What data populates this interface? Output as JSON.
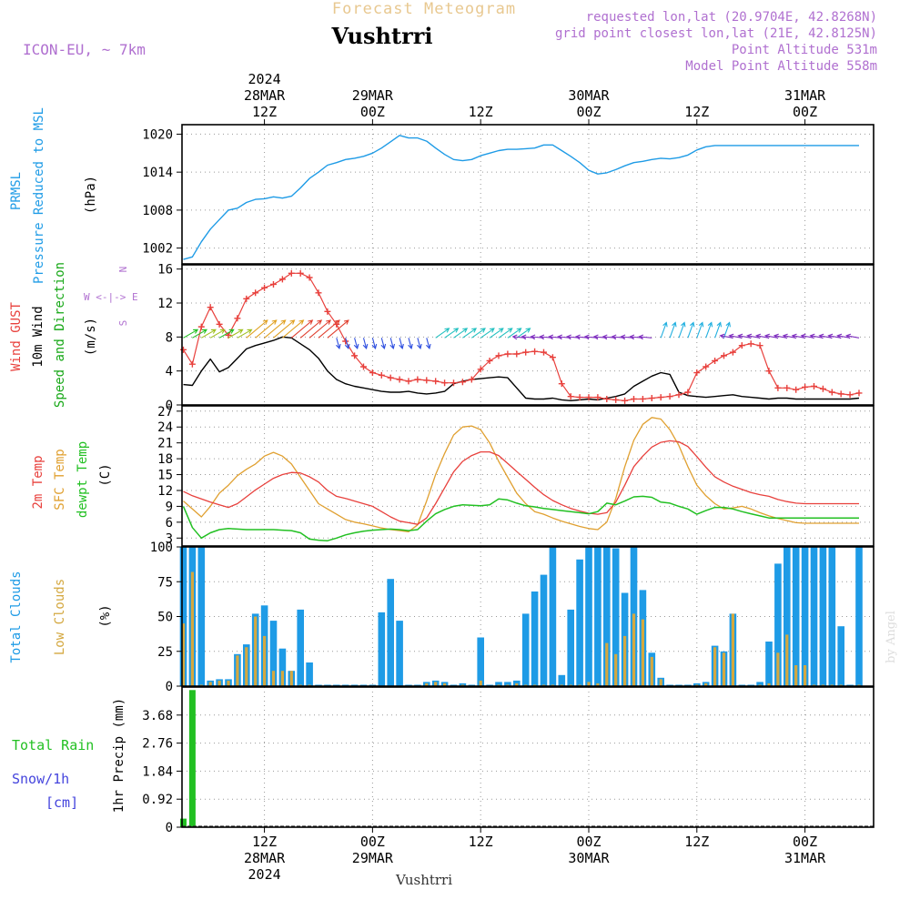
{
  "header": {
    "title": "Forecast Meteogram",
    "location": "Vushtrri",
    "model": "ICON-EU, ~ 7km",
    "requested": "requested lon,lat (20.9704E, 42.8268N)",
    "grid_point": "grid point closest lon,lat (21E, 42.8125N)",
    "point_altitude": "Point Altitude 531m",
    "model_altitude": "Model Point Altitude 558m",
    "footer_location": "Vushtrri",
    "watermark": "by Angel"
  },
  "time_axis": {
    "top_labels": [
      {
        "line1": "2024",
        "line2": "28MAR",
        "line3": "12Z",
        "hour": 12
      },
      {
        "line1": "",
        "line2": "29MAR",
        "line3": "00Z",
        "hour": 24
      },
      {
        "line1": "",
        "line2": "",
        "line3": "12Z",
        "hour": 36
      },
      {
        "line1": "",
        "line2": "30MAR",
        "line3": "00Z",
        "hour": 48
      },
      {
        "line1": "",
        "line2": "",
        "line3": "12Z",
        "hour": 60
      },
      {
        "line1": "",
        "line2": "31MAR",
        "line3": "00Z",
        "hour": 72
      }
    ],
    "bottom_labels": [
      {
        "line1": "12Z",
        "line2": "28MAR",
        "line3": "2024",
        "hour": 12
      },
      {
        "line1": "00Z",
        "line2": "29MAR",
        "line3": "",
        "hour": 24
      },
      {
        "line1": "12Z",
        "line2": "",
        "line3": "",
        "hour": 36
      },
      {
        "line1": "00Z",
        "line2": "30MAR",
        "line3": "",
        "hour": 48
      },
      {
        "line1": "12Z",
        "line2": "",
        "line3": "",
        "hour": 60
      },
      {
        "line1": "00Z",
        "line2": "31MAR",
        "line3": "",
        "hour": 72
      }
    ],
    "range_hours": [
      3,
      78
    ]
  },
  "colors": {
    "pressure": "#1e9be6",
    "gust": "#e8403c",
    "wind": "#000000",
    "wind_label": "#18a818",
    "temp": "#e8403c",
    "sfc_temp": "#e0a030",
    "dewpt": "#22c022",
    "total_clouds": "#1e9be6",
    "low_clouds": "#d4a840",
    "rain": "#22c022",
    "snow": "#4444dd",
    "header": "#b070d0",
    "title": "#e8c890"
  },
  "panels": {
    "pressure": {
      "label1": "PRMSL",
      "label2": "Pressure Reduced to MSL",
      "unit": "(hPa)",
      "ticks": [
        "1002",
        "1008",
        "1014",
        "1020"
      ]
    },
    "wind": {
      "label1": "Wind GUST",
      "label2": "10m Wind",
      "label3": "Speed and Direction",
      "unit": "(m/s)",
      "compass_n": "N",
      "compass_s": "S",
      "compass_ew": "W <-|-> E",
      "ticks": [
        "0",
        "4",
        "8",
        "12",
        "16"
      ]
    },
    "temp": {
      "label1": "2m Temp",
      "label2": "SFC Temp",
      "label3": "dewpt Temp",
      "unit": "(C)",
      "ticks": [
        "3",
        "6",
        "9",
        "12",
        "15",
        "18",
        "21",
        "24",
        "27"
      ]
    },
    "clouds": {
      "label1": "Total Clouds",
      "label2": "Low Clouds",
      "unit": "(%)",
      "ticks": [
        "0",
        "25",
        "50",
        "75",
        "100"
      ]
    },
    "precip": {
      "label1": "Total Rain",
      "label2": "Snow/1h",
      "label3": "[cm]",
      "unit": "1hr Precip (mm)",
      "ticks": [
        "0",
        "0.92",
        "1.84",
        "2.76",
        "3.68"
      ]
    }
  },
  "chart_data": [
    {
      "type": "line",
      "title": "PRMSL Pressure Reduced to MSL",
      "ylabel": "(hPa)",
      "ylim": [
        999.5,
        1021.5
      ],
      "x_unit": "hours from 28MAR 00Z",
      "series": [
        {
          "name": "PRMSL",
          "x": [
            3,
            4,
            5,
            6,
            7,
            8,
            9,
            10,
            11,
            12,
            13,
            14,
            15,
            16,
            17,
            18,
            19,
            20,
            21,
            22,
            23,
            24,
            25,
            26,
            27,
            28,
            29,
            30,
            31,
            32,
            33,
            34,
            35,
            36,
            37,
            38,
            39,
            40,
            41,
            42,
            43,
            44,
            45,
            46,
            47,
            48,
            49,
            50,
            51,
            52,
            53,
            54,
            55,
            56,
            57,
            58,
            59,
            60,
            61,
            62,
            63,
            64,
            65,
            66,
            67,
            68,
            69,
            70,
            71,
            72,
            73,
            74,
            75,
            76,
            77,
            78
          ],
          "values": [
            1000.2,
            1000.6,
            1003.0,
            1005.0,
            1006.5,
            1008.0,
            1008.3,
            1009.2,
            1009.7,
            1009.8,
            1010.1,
            1009.9,
            1010.2,
            1011.5,
            1013.0,
            1014.0,
            1015.1,
            1015.5,
            1016.0,
            1016.2,
            1016.5,
            1017.0,
            1017.8,
            1018.8,
            1019.8,
            1019.4,
            1019.4,
            1018.9,
            1017.8,
            1016.8,
            1016.0,
            1015.8,
            1016.0,
            1016.6,
            1017.0,
            1017.4,
            1017.6,
            1017.6,
            1017.7,
            1017.8,
            1018.3,
            1018.3,
            1017.4,
            1016.5,
            1015.5,
            1014.3,
            1013.7,
            1013.9,
            1014.4,
            1015.0,
            1015.5,
            1015.7,
            1016.0,
            1016.2,
            1016.1,
            1016.3,
            1016.7,
            1017.5,
            1018.0,
            1018.2,
            1018.2,
            1018.2,
            1018.2,
            1018.2,
            1018.2,
            1018.2,
            1018.2,
            1018.2,
            1018.2,
            1018.2,
            1018.2,
            1018.2,
            1018.2,
            1018.2,
            1018.2,
            1018.2
          ]
        }
      ]
    },
    {
      "type": "line",
      "title": "Wind GUST / 10m Wind Speed and Direction",
      "ylabel": "(m/s)",
      "ylim": [
        0,
        16.5
      ],
      "series": [
        {
          "name": "Wind GUST",
          "values": [
            6.5,
            4.8,
            9.2,
            11.5,
            9.5,
            8.2,
            10.2,
            12.5,
            13.2,
            13.8,
            14.2,
            14.8,
            15.5,
            15.5,
            15.0,
            13.2,
            11.0,
            9.5,
            7.5,
            5.8,
            4.5,
            3.8,
            3.5,
            3.2,
            3.0,
            2.8,
            3.0,
            2.9,
            2.8,
            2.6,
            2.6,
            2.7,
            3.0,
            4.2,
            5.2,
            5.8,
            6.0,
            6.0,
            6.2,
            6.3,
            6.2,
            5.6,
            2.5,
            1.0,
            0.9,
            0.9,
            0.9,
            0.7,
            0.6,
            0.5,
            0.7,
            0.7,
            0.8,
            0.9,
            1.0,
            1.2,
            1.5,
            3.8,
            4.5,
            5.2,
            5.8,
            6.2,
            7.0,
            7.2,
            7.0,
            4.0,
            2.0,
            2.0,
            1.8,
            2.1,
            2.2,
            1.9,
            1.5,
            1.3,
            1.2,
            1.4
          ]
        },
        {
          "name": "10m Wind",
          "values": [
            2.4,
            2.3,
            4.0,
            5.4,
            3.9,
            4.4,
            5.5,
            6.6,
            7.0,
            7.3,
            7.6,
            8.0,
            7.9,
            7.2,
            6.5,
            5.5,
            4.0,
            3.0,
            2.5,
            2.2,
            2.0,
            1.8,
            1.6,
            1.5,
            1.5,
            1.6,
            1.4,
            1.3,
            1.4,
            1.6,
            2.5,
            2.8,
            3.0,
            3.1,
            3.2,
            3.3,
            3.2,
            2.0,
            0.8,
            0.7,
            0.7,
            0.8,
            0.6,
            0.5,
            0.6,
            0.7,
            0.6,
            0.8,
            1.0,
            1.3,
            2.2,
            2.8,
            3.4,
            3.8,
            3.6,
            1.5,
            1.1,
            1.0,
            0.9,
            1.0,
            1.1,
            1.2,
            1.0,
            0.9,
            0.8,
            0.7,
            0.8,
            0.8,
            0.7,
            0.7,
            0.7,
            0.7,
            0.7,
            0.7,
            0.7,
            0.8
          ]
        }
      ]
    },
    {
      "type": "line",
      "title": "2m Temp / SFC Temp / dewpt Temp",
      "ylabel": "(C)",
      "ylim": [
        1.5,
        28
      ],
      "series": [
        {
          "name": "2m Temp",
          "values": [
            11.8,
            11.0,
            10.4,
            9.8,
            9.3,
            8.8,
            9.5,
            10.8,
            12.1,
            13.2,
            14.3,
            15.0,
            15.4,
            15.3,
            14.6,
            13.6,
            12.0,
            10.9,
            10.5,
            10.0,
            9.5,
            9.0,
            8.0,
            7.0,
            6.2,
            5.9,
            5.6,
            6.8,
            9.5,
            12.5,
            15.5,
            17.5,
            18.6,
            19.3,
            19.3,
            18.6,
            17.1,
            15.6,
            14.1,
            12.6,
            11.2,
            10.1,
            9.3,
            8.6,
            8.1,
            7.7,
            7.5,
            7.8,
            9.8,
            13.0,
            16.5,
            18.5,
            20.2,
            21.1,
            21.4,
            21.2,
            20.3,
            18.4,
            16.4,
            14.6,
            13.6,
            12.8,
            12.2,
            11.6,
            11.2,
            10.9,
            10.3,
            9.9,
            9.6,
            9.5,
            9.5,
            9.5,
            9.5,
            9.5,
            9.5,
            9.5
          ]
        },
        {
          "name": "SFC Temp",
          "values": [
            10.0,
            8.5,
            7.0,
            9.0,
            11.5,
            13.0,
            14.8,
            16.0,
            17.0,
            18.5,
            19.2,
            18.5,
            17.0,
            14.5,
            12.0,
            9.5,
            8.5,
            7.5,
            6.5,
            6.0,
            5.7,
            5.3,
            4.9,
            4.6,
            4.4,
            4.2,
            5.5,
            10.0,
            15.0,
            19.0,
            22.5,
            24.0,
            24.2,
            23.5,
            21.0,
            17.5,
            14.5,
            11.5,
            9.5,
            8.0,
            7.5,
            6.8,
            6.2,
            5.7,
            5.2,
            4.8,
            4.6,
            6.0,
            10.5,
            16.5,
            21.5,
            24.5,
            25.8,
            25.5,
            23.5,
            20.5,
            16.5,
            13.0,
            11.0,
            9.5,
            8.5,
            8.7,
            9.0,
            8.5,
            7.8,
            7.2,
            6.7,
            6.3,
            5.9,
            5.8,
            5.8,
            5.8,
            5.8,
            5.8,
            5.8,
            5.8
          ]
        },
        {
          "name": "dewpt Temp",
          "values": [
            9.0,
            5.0,
            3.0,
            4.0,
            4.6,
            4.8,
            4.7,
            4.6,
            4.6,
            4.6,
            4.6,
            4.5,
            4.4,
            4.0,
            2.8,
            2.6,
            2.5,
            3.0,
            3.6,
            4.0,
            4.3,
            4.5,
            4.6,
            4.7,
            4.6,
            4.4,
            4.6,
            6.2,
            7.6,
            8.4,
            9.0,
            9.3,
            9.2,
            9.1,
            9.3,
            10.4,
            10.2,
            9.6,
            9.1,
            8.9,
            8.6,
            8.4,
            8.2,
            8.0,
            7.8,
            7.6,
            8.0,
            9.6,
            9.3,
            10.0,
            10.8,
            10.9,
            10.7,
            9.8,
            9.6,
            9.0,
            8.5,
            7.5,
            8.2,
            8.8,
            8.8,
            8.5,
            8.0,
            7.6,
            7.2,
            6.8,
            6.8,
            6.8,
            6.8,
            6.8,
            6.8,
            6.8,
            6.8,
            6.8,
            6.8,
            6.8
          ]
        }
      ]
    },
    {
      "type": "bar",
      "title": "Total Clouds / Low Clouds",
      "ylabel": "(%)",
      "ylim": [
        0,
        100
      ],
      "series": [
        {
          "name": "Total Clouds",
          "values": [
            100,
            100,
            100,
            4,
            5,
            5,
            23,
            30,
            52,
            58,
            47,
            27,
            11,
            55,
            17,
            1,
            1,
            1,
            1,
            1,
            1,
            1,
            53,
            77,
            47,
            1,
            1,
            3,
            4,
            3,
            1,
            2,
            1,
            35,
            1,
            3,
            3,
            4,
            52,
            68,
            80,
            100,
            8,
            55,
            91,
            100,
            100,
            100,
            99,
            67,
            100,
            69,
            24,
            6,
            1,
            1,
            1,
            2,
            3,
            29,
            25,
            52,
            1,
            1,
            3,
            32,
            88,
            100,
            100,
            100,
            100,
            100,
            100,
            43,
            1,
            100
          ]
        },
        {
          "name": "Low Clouds",
          "values": [
            45,
            82,
            1,
            3,
            4,
            4,
            22,
            28,
            50,
            36,
            11,
            11,
            11,
            1,
            1,
            0,
            0,
            0,
            0,
            0,
            0,
            0,
            0,
            0,
            0,
            0,
            0,
            2,
            3,
            2,
            0,
            1,
            0,
            4,
            0,
            1,
            1,
            2,
            1,
            1,
            1,
            1,
            1,
            1,
            1,
            3,
            2,
            31,
            23,
            36,
            52,
            48,
            21,
            5,
            0,
            0,
            0,
            1,
            2,
            28,
            24,
            52,
            0,
            0,
            1,
            2,
            24,
            37,
            15,
            15,
            1,
            1,
            1,
            1,
            0,
            1
          ]
        }
      ]
    },
    {
      "type": "bar",
      "title": "1hr Precip",
      "ylabel": "1hr Precip (mm)",
      "ylim": [
        0,
        4.6
      ],
      "series": [
        {
          "name": "Total Rain",
          "x": [
            3,
            4
          ],
          "values": [
            0.28,
            4.5
          ]
        },
        {
          "name": "Snow/1h",
          "x": [],
          "values": []
        }
      ]
    }
  ]
}
